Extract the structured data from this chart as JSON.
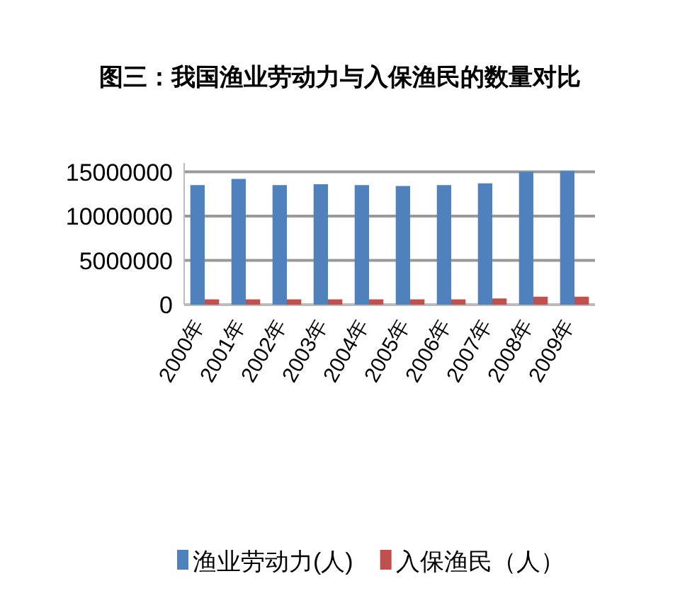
{
  "chart_data": {
    "type": "bar",
    "title": "图三：我国渔业劳动力与入保渔民的数量对比",
    "categories": [
      "2000年",
      "2001年",
      "2002年",
      "2003年",
      "2004年",
      "2005年",
      "2006年",
      "2007年",
      "2008年",
      "2009年"
    ],
    "series": [
      {
        "name": "渔业劳动力(人)",
        "color": "#4f81bd",
        "values": [
          13500000,
          14200000,
          13500000,
          13600000,
          13500000,
          13400000,
          13500000,
          13700000,
          15000000,
          15100000
        ]
      },
      {
        "name": "入保渔民（人）",
        "color": "#c0504d",
        "values": [
          600000,
          600000,
          600000,
          600000,
          600000,
          600000,
          600000,
          700000,
          900000,
          900000
        ]
      }
    ],
    "ylim": [
      0,
      16000000
    ],
    "yticks": [
      0,
      5000000,
      10000000,
      15000000
    ],
    "grid": "y",
    "legend": "bottom"
  }
}
